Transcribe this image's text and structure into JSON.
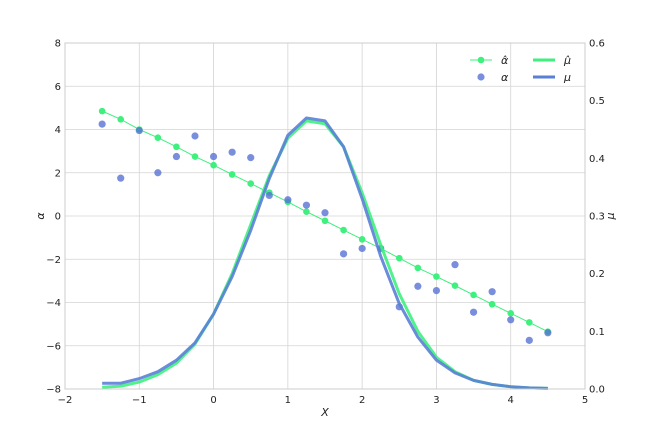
{
  "chart_data": {
    "type": "line",
    "x_axis": {
      "label": "X",
      "range": [
        -2,
        5
      ],
      "ticks": [
        -2,
        -1,
        0,
        1,
        2,
        3,
        4,
        5
      ],
      "tick_labels": [
        "−2",
        "−1",
        "0",
        "1",
        "2",
        "3",
        "4",
        "5"
      ]
    },
    "y_left": {
      "label": "α",
      "range": [
        -8,
        8
      ],
      "ticks": [
        -8,
        -6,
        -4,
        -2,
        0,
        2,
        4,
        6,
        8
      ],
      "tick_labels": [
        "−8",
        "−6",
        "−4",
        "−2",
        "0",
        "2",
        "4",
        "6",
        "8"
      ]
    },
    "y_right": {
      "label": "μ",
      "range": [
        0,
        0.6
      ],
      "ticks": [
        0,
        0.1,
        0.2,
        0.3,
        0.4,
        0.5,
        0.6
      ],
      "tick_labels": [
        "0.0",
        "0.1",
        "0.2",
        "0.3",
        "0.4",
        "0.5",
        "0.6"
      ]
    },
    "grid": true,
    "legend_placement": "top-right",
    "series": [
      {
        "name": "α̂",
        "kind": "line-markers",
        "axis": "left",
        "color": "#3ef07e",
        "x": [
          -1.5,
          -1.25,
          -1.0,
          -0.75,
          -0.5,
          -0.25,
          0.0,
          0.25,
          0.5,
          0.75,
          1.0,
          1.25,
          1.5,
          1.75,
          2.0,
          2.25,
          2.5,
          2.75,
          3.0,
          3.25,
          3.5,
          3.75,
          4.0,
          4.25,
          4.5
        ],
        "y": [
          4.85,
          4.47,
          4.0,
          3.62,
          3.2,
          2.75,
          2.35,
          1.92,
          1.5,
          1.08,
          0.65,
          0.2,
          -0.22,
          -0.65,
          -1.08,
          -1.5,
          -1.95,
          -2.4,
          -2.8,
          -3.22,
          -3.65,
          -4.08,
          -4.5,
          -4.92,
          -5.35
        ]
      },
      {
        "name": "α",
        "kind": "scatter",
        "axis": "left",
        "color": "#5872d4",
        "x": [
          -1.5,
          -1.25,
          -1.0,
          -0.75,
          -0.5,
          -0.25,
          0.0,
          0.25,
          0.5,
          0.75,
          1.0,
          1.25,
          1.5,
          1.75,
          2.0,
          2.25,
          2.5,
          2.75,
          3.0,
          3.25,
          3.5,
          3.75,
          4.0,
          4.25,
          4.5
        ],
        "y": [
          4.25,
          1.75,
          3.95,
          2.0,
          2.75,
          3.7,
          2.75,
          2.95,
          2.7,
          0.95,
          0.75,
          0.5,
          0.15,
          -1.75,
          -1.5,
          -1.5,
          -4.2,
          -3.25,
          -3.45,
          -2.25,
          -4.45,
          -3.5,
          -4.8,
          -5.75,
          -5.4
        ]
      },
      {
        "name": "μ̂",
        "kind": "line",
        "axis": "right",
        "color": "#3ef07e",
        "x": [
          -1.5,
          -1.25,
          -1.0,
          -0.75,
          -0.5,
          -0.25,
          0.0,
          0.25,
          0.5,
          0.75,
          1.0,
          1.25,
          1.5,
          1.75,
          2.0,
          2.25,
          2.5,
          2.75,
          3.0,
          3.25,
          3.5,
          3.75,
          4.0,
          4.25,
          4.5
        ],
        "y": [
          0.003,
          0.005,
          0.012,
          0.025,
          0.045,
          0.078,
          0.13,
          0.2,
          0.285,
          0.37,
          0.435,
          0.465,
          0.46,
          0.42,
          0.34,
          0.25,
          0.165,
          0.1,
          0.055,
          0.03,
          0.015,
          0.008,
          0.004,
          0.002,
          0.001
        ]
      },
      {
        "name": "μ",
        "kind": "line",
        "axis": "right",
        "color": "#5a7fd6",
        "x": [
          -1.5,
          -1.25,
          -1.0,
          -0.75,
          -0.5,
          -0.25,
          0.0,
          0.25,
          0.5,
          0.75,
          1.0,
          1.25,
          1.5,
          1.75,
          2.0,
          2.25,
          2.5,
          2.75,
          3.0,
          3.25,
          3.5,
          3.75,
          4.0,
          4.25,
          4.5
        ],
        "y": [
          0.01,
          0.01,
          0.018,
          0.03,
          0.05,
          0.08,
          0.13,
          0.195,
          0.275,
          0.365,
          0.44,
          0.47,
          0.465,
          0.42,
          0.33,
          0.23,
          0.148,
          0.09,
          0.05,
          0.028,
          0.015,
          0.008,
          0.004,
          0.002,
          0.001
        ]
      }
    ]
  }
}
